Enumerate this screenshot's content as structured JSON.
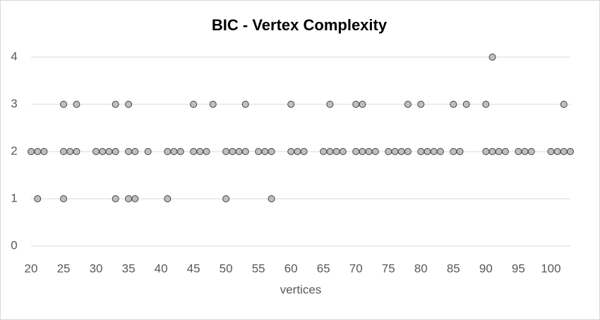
{
  "chart_data": {
    "type": "scatter",
    "title": "BIC - Vertex Complexity",
    "x_label": "vertices",
    "x": [
      20,
      21,
      22,
      25,
      26,
      27,
      30,
      31,
      32,
      33,
      35,
      36,
      38,
      41,
      42,
      43,
      45,
      46,
      47,
      50,
      51,
      52,
      53,
      55,
      56,
      57,
      60,
      61,
      62,
      65,
      66,
      67,
      68,
      70,
      71,
      72,
      73,
      75,
      76,
      77,
      78,
      80,
      81,
      82,
      83,
      85,
      86,
      90,
      91,
      92,
      93,
      95,
      96,
      97,
      100,
      101,
      102,
      103,
      25,
      27,
      33,
      35,
      45,
      48,
      53,
      60,
      66,
      70,
      71,
      78,
      80,
      85,
      87,
      90,
      102,
      91,
      21,
      25,
      33,
      35,
      36,
      41,
      50,
      57
    ],
    "y": [
      2,
      2,
      2,
      2,
      2,
      2,
      2,
      2,
      2,
      2,
      2,
      2,
      2,
      2,
      2,
      2,
      2,
      2,
      2,
      2,
      2,
      2,
      2,
      2,
      2,
      2,
      2,
      2,
      2,
      2,
      2,
      2,
      2,
      2,
      2,
      2,
      2,
      2,
      2,
      2,
      2,
      2,
      2,
      2,
      2,
      2,
      2,
      2,
      2,
      2,
      2,
      2,
      2,
      2,
      2,
      2,
      2,
      2,
      3,
      3,
      3,
      3,
      3,
      3,
      3,
      3,
      3,
      3,
      3,
      3,
      3,
      3,
      3,
      3,
      3,
      4,
      1,
      1,
      1,
      1,
      1,
      1,
      1,
      1
    ],
    "color": "#bfbfbf",
    "xlim": [
      20,
      103
    ],
    "xticks": [
      20,
      25,
      30,
      35,
      40,
      45,
      50,
      55,
      60,
      65,
      70,
      75,
      80,
      85,
      90,
      95,
      100
    ],
    "ylim": [
      0,
      4
    ],
    "yticks": [
      0,
      1,
      2,
      3,
      4
    ],
    "grid": true
  }
}
